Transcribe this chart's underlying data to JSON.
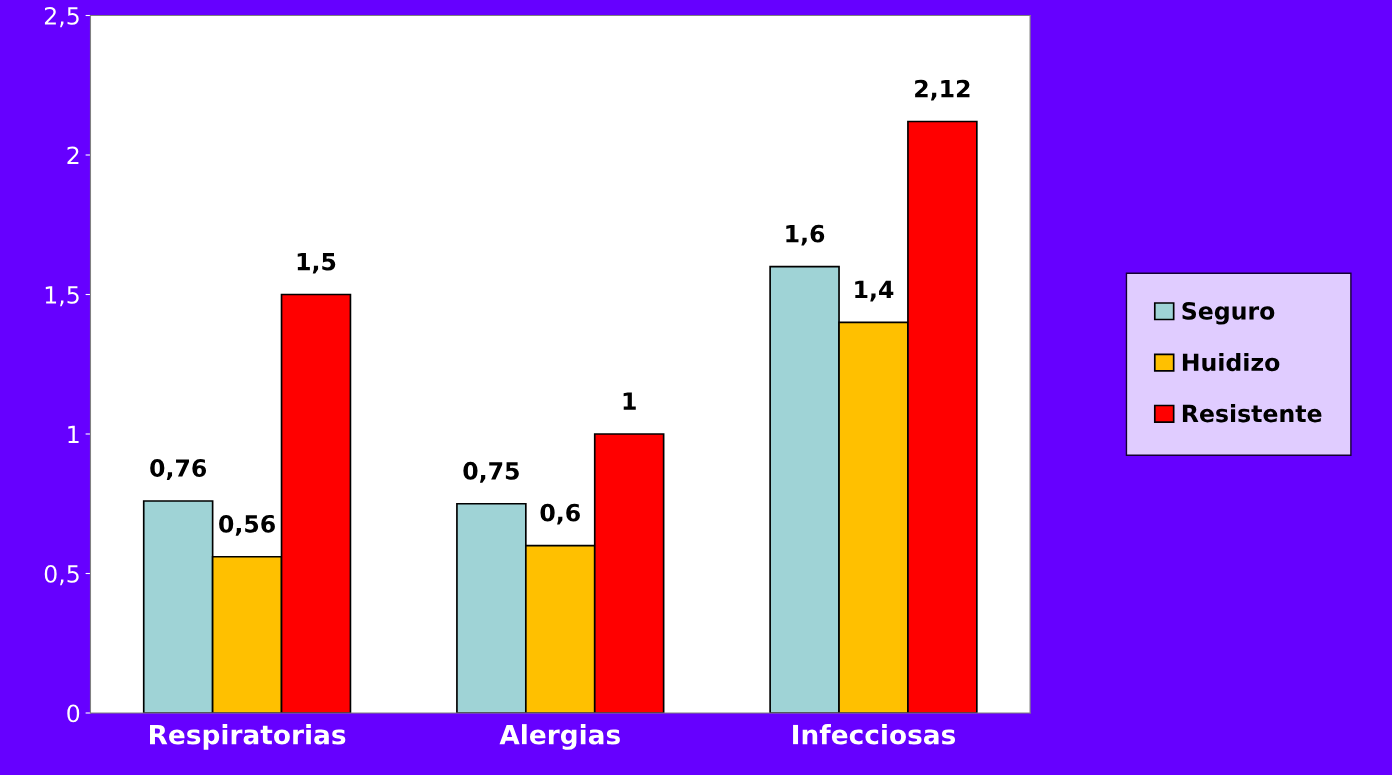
{
  "chart_data": {
    "type": "bar",
    "categories": [
      "Respiratorias",
      "Alergias",
      "Infecciosas"
    ],
    "series": [
      {
        "name": "Seguro",
        "color": "#9fd3d6",
        "values": [
          0.76,
          0.75,
          1.6
        ],
        "value_labels": [
          "0,76",
          "0,75",
          "1,6"
        ]
      },
      {
        "name": "Huidizo",
        "color": "#ffc000",
        "values": [
          0.56,
          0.6,
          1.4
        ],
        "value_labels": [
          "0,56",
          "0,6",
          "1,4"
        ]
      },
      {
        "name": "Resistente",
        "color": "#ff0000",
        "values": [
          1.5,
          1,
          2.12
        ],
        "value_labels": [
          "1,5",
          "1",
          "2,12"
        ]
      }
    ],
    "ylim": [
      0,
      2.5
    ],
    "yticks": [
      0,
      {
        "value": 0.5,
        "label": "0,5"
      },
      1,
      {
        "value": 1.5,
        "label": "1,5"
      },
      2,
      {
        "value": 2.5,
        "label": "2,5"
      }
    ],
    "legend": "right",
    "grid": false
  }
}
